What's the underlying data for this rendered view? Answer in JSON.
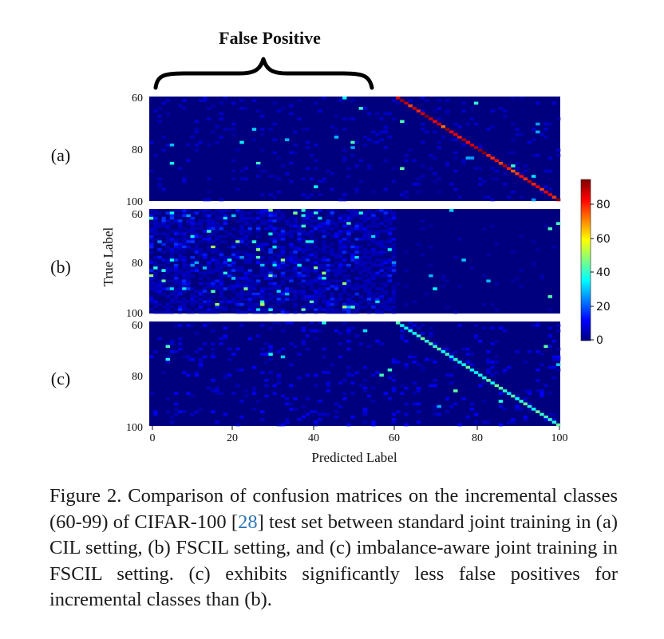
{
  "figure": {
    "annotation": "False Positive",
    "panels": [
      {
        "label": "(a)",
        "y_ticks": [
          "60",
          "80",
          "100"
        ]
      },
      {
        "label": "(b)",
        "y_ticks": [
          "60",
          "80",
          "100"
        ]
      },
      {
        "label": "(c)",
        "y_ticks": [
          "60",
          "80",
          "100"
        ]
      }
    ],
    "ylabel": "True Label",
    "xlabel": "Predicted Label",
    "x_ticks": [
      "0",
      "20",
      "40",
      "60",
      "80",
      "100"
    ],
    "colorbar": {
      "ticks": [
        "80",
        "60",
        "40",
        "20",
        "0"
      ],
      "min": 0,
      "max": 95
    }
  },
  "chart_data": [
    {
      "type": "heatmap",
      "panel": "(a)",
      "xlabel": "Predicted Label",
      "ylabel": "True Label",
      "x_range": [
        0,
        100
      ],
      "y_range": [
        60,
        100
      ],
      "colormap": "jet",
      "value_range": [
        0,
        95
      ],
      "diagonal_value_approx": 85,
      "off_diagonal_value_approx": 2
    },
    {
      "type": "heatmap",
      "panel": "(b)",
      "xlabel": "Predicted Label",
      "ylabel": "True Label",
      "x_range": [
        0,
        100
      ],
      "y_range": [
        60,
        100
      ],
      "colormap": "jet",
      "value_range": [
        0,
        95
      ],
      "diagonal_value_approx": 1,
      "false_positive_region_x": [
        0,
        59
      ],
      "false_positive_value_approx": 20
    },
    {
      "type": "heatmap",
      "panel": "(c)",
      "xlabel": "Predicted Label",
      "ylabel": "True Label",
      "x_range": [
        0,
        100
      ],
      "y_range": [
        60,
        100
      ],
      "colormap": "jet",
      "value_range": [
        0,
        95
      ],
      "diagonal_value_approx": 40,
      "off_diagonal_value_approx": 3
    }
  ],
  "caption": {
    "text_before_cite": "Figure 2.  Comparison of confusion matrices on the incremental classes (60-99) of CIFAR-100 [",
    "cite": "28",
    "text_after_cite": "] test set between standard joint training in (a) CIL setting, (b) FSCIL setting, and (c) imbalance-aware joint training in FSCIL setting. (c) exhibits significantly less false positives for incremental classes than (b)."
  }
}
